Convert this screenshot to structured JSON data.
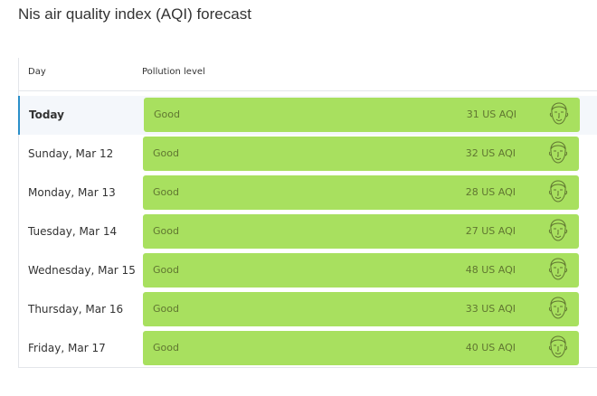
{
  "header": {
    "title": "Nis air quality index (AQI) forecast"
  },
  "table": {
    "columns": [
      "Day",
      "Pollution level"
    ],
    "rows": [
      {
        "day": "Today",
        "level": "Good",
        "aqi": "31 US AQI"
      },
      {
        "day": "Sunday, Mar 12",
        "level": "Good",
        "aqi": "32 US AQI"
      },
      {
        "day": "Monday, Mar 13",
        "level": "Good",
        "aqi": "28 US AQI"
      },
      {
        "day": "Tuesday, Mar 14",
        "level": "Good",
        "aqi": "27 US AQI"
      },
      {
        "day": "Wednesday, Mar 15",
        "level": "Good",
        "aqi": "48 US AQI"
      },
      {
        "day": "Thursday, Mar 16",
        "level": "Good",
        "aqi": "33 US AQI"
      },
      {
        "day": "Friday, Mar 17",
        "level": "Good",
        "aqi": "40 US AQI"
      }
    ]
  }
}
